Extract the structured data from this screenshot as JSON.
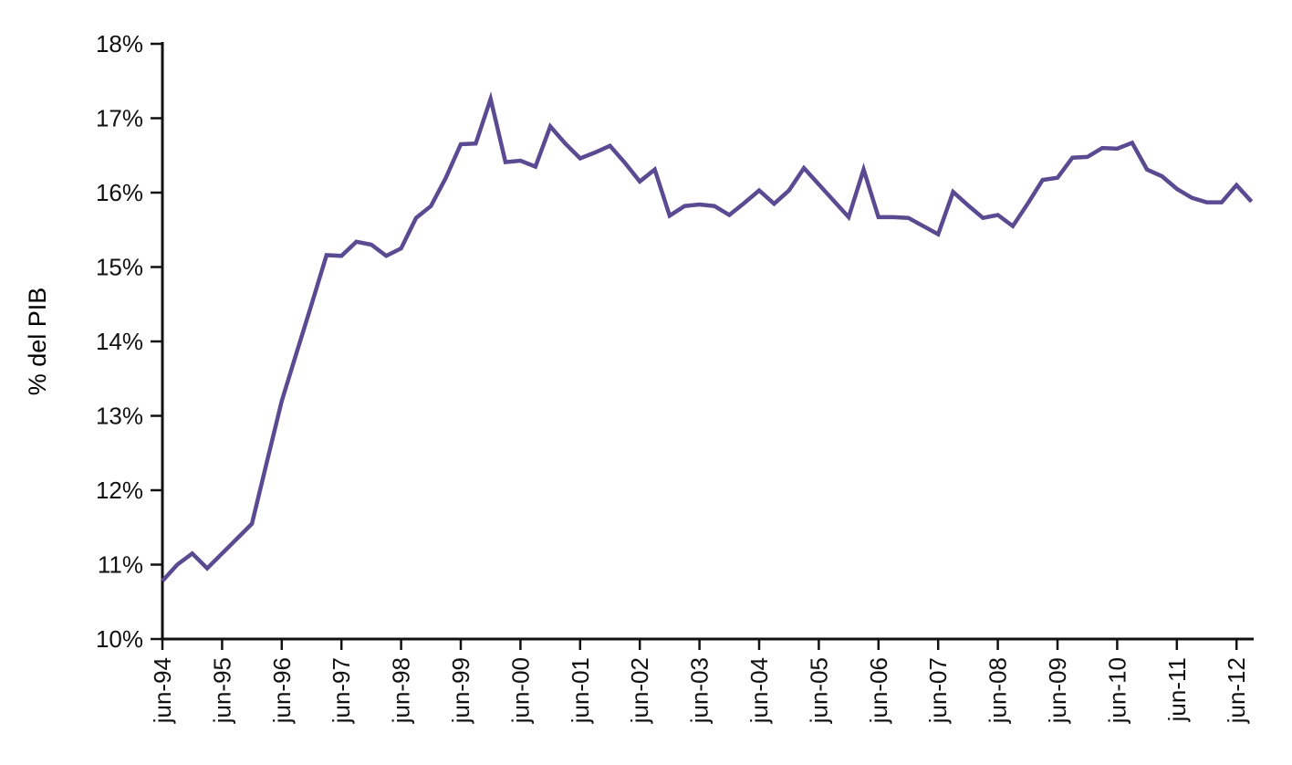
{
  "chart_data": {
    "type": "line",
    "title": "",
    "xlabel": "",
    "ylabel": "% del PIB",
    "line_color": "#5a4a92",
    "axis_color": "#111111",
    "text_color": "#111111",
    "background_color": "#ffffff",
    "ylim": [
      10,
      18
    ],
    "grid": "off",
    "legend": "none",
    "y_tick_values": [
      10,
      11,
      12,
      13,
      14,
      15,
      16,
      17,
      18
    ],
    "y_tick_labels": [
      "10%",
      "11%",
      "12%",
      "13%",
      "14%",
      "15%",
      "16%",
      "17%",
      "18%"
    ],
    "x_tick_labels": [
      "jun-94",
      "jun-95",
      "jun-96",
      "jun-97",
      "jun-98",
      "jun-99",
      "jun-00",
      "jun-01",
      "jun-02",
      "jun-03",
      "jun-04",
      "jun-05",
      "jun-06",
      "jun-07",
      "jun-08",
      "jun-09",
      "jun-10",
      "jun-11",
      "jun-12"
    ],
    "x_tick_point_indices": [
      0,
      4,
      8,
      12,
      16,
      20,
      24,
      28,
      32,
      36,
      40,
      44,
      48,
      52,
      56,
      60,
      64,
      68,
      72
    ],
    "x": [
      "jun-94",
      "sep-94",
      "dec-94",
      "mar-95",
      "jun-95",
      "sep-95",
      "dec-95",
      "mar-96",
      "jun-96",
      "sep-96",
      "dec-96",
      "mar-97",
      "jun-97",
      "sep-97",
      "dec-97",
      "mar-98",
      "jun-98",
      "sep-98",
      "dec-98",
      "mar-99",
      "jun-99",
      "sep-99",
      "dec-99",
      "mar-00",
      "jun-00",
      "sep-00",
      "dec-00",
      "mar-01",
      "jun-01",
      "sep-01",
      "dec-01",
      "mar-02",
      "jun-02",
      "sep-02",
      "dec-02",
      "mar-03",
      "jun-03",
      "sep-03",
      "dec-03",
      "mar-04",
      "jun-04",
      "sep-04",
      "dec-04",
      "mar-05",
      "jun-05",
      "sep-05",
      "dec-05",
      "mar-06",
      "jun-06",
      "sep-06",
      "dec-06",
      "mar-07",
      "jun-07",
      "sep-07",
      "dec-07",
      "mar-08",
      "jun-08",
      "sep-08",
      "dec-08",
      "mar-09",
      "jun-09",
      "sep-09",
      "dec-09",
      "mar-10",
      "jun-10",
      "sep-10",
      "dec-10",
      "mar-11",
      "jun-11",
      "sep-11",
      "dec-11",
      "mar-12",
      "jun-12",
      "sep-12"
    ],
    "values": [
      10.78,
      11.0,
      11.15,
      10.95,
      11.15,
      11.35,
      11.55,
      12.38,
      13.2,
      13.85,
      14.5,
      15.16,
      15.15,
      15.34,
      15.3,
      15.15,
      15.25,
      15.66,
      15.82,
      16.2,
      16.65,
      16.66,
      17.26,
      16.41,
      16.43,
      16.35,
      16.89,
      16.66,
      16.46,
      16.54,
      16.63,
      16.4,
      16.15,
      16.31,
      15.69,
      15.82,
      15.84,
      15.82,
      15.7,
      15.86,
      16.03,
      15.85,
      16.03,
      16.33,
      16.11,
      15.89,
      15.67,
      16.31,
      15.67,
      15.67,
      15.66,
      15.55,
      15.44,
      16.01,
      15.83,
      15.66,
      15.7,
      15.55,
      15.85,
      16.17,
      16.2,
      16.47,
      16.48,
      16.6,
      16.59,
      16.67,
      16.31,
      16.22,
      16.05,
      15.93,
      15.87,
      15.87,
      16.1,
      15.88
    ]
  }
}
